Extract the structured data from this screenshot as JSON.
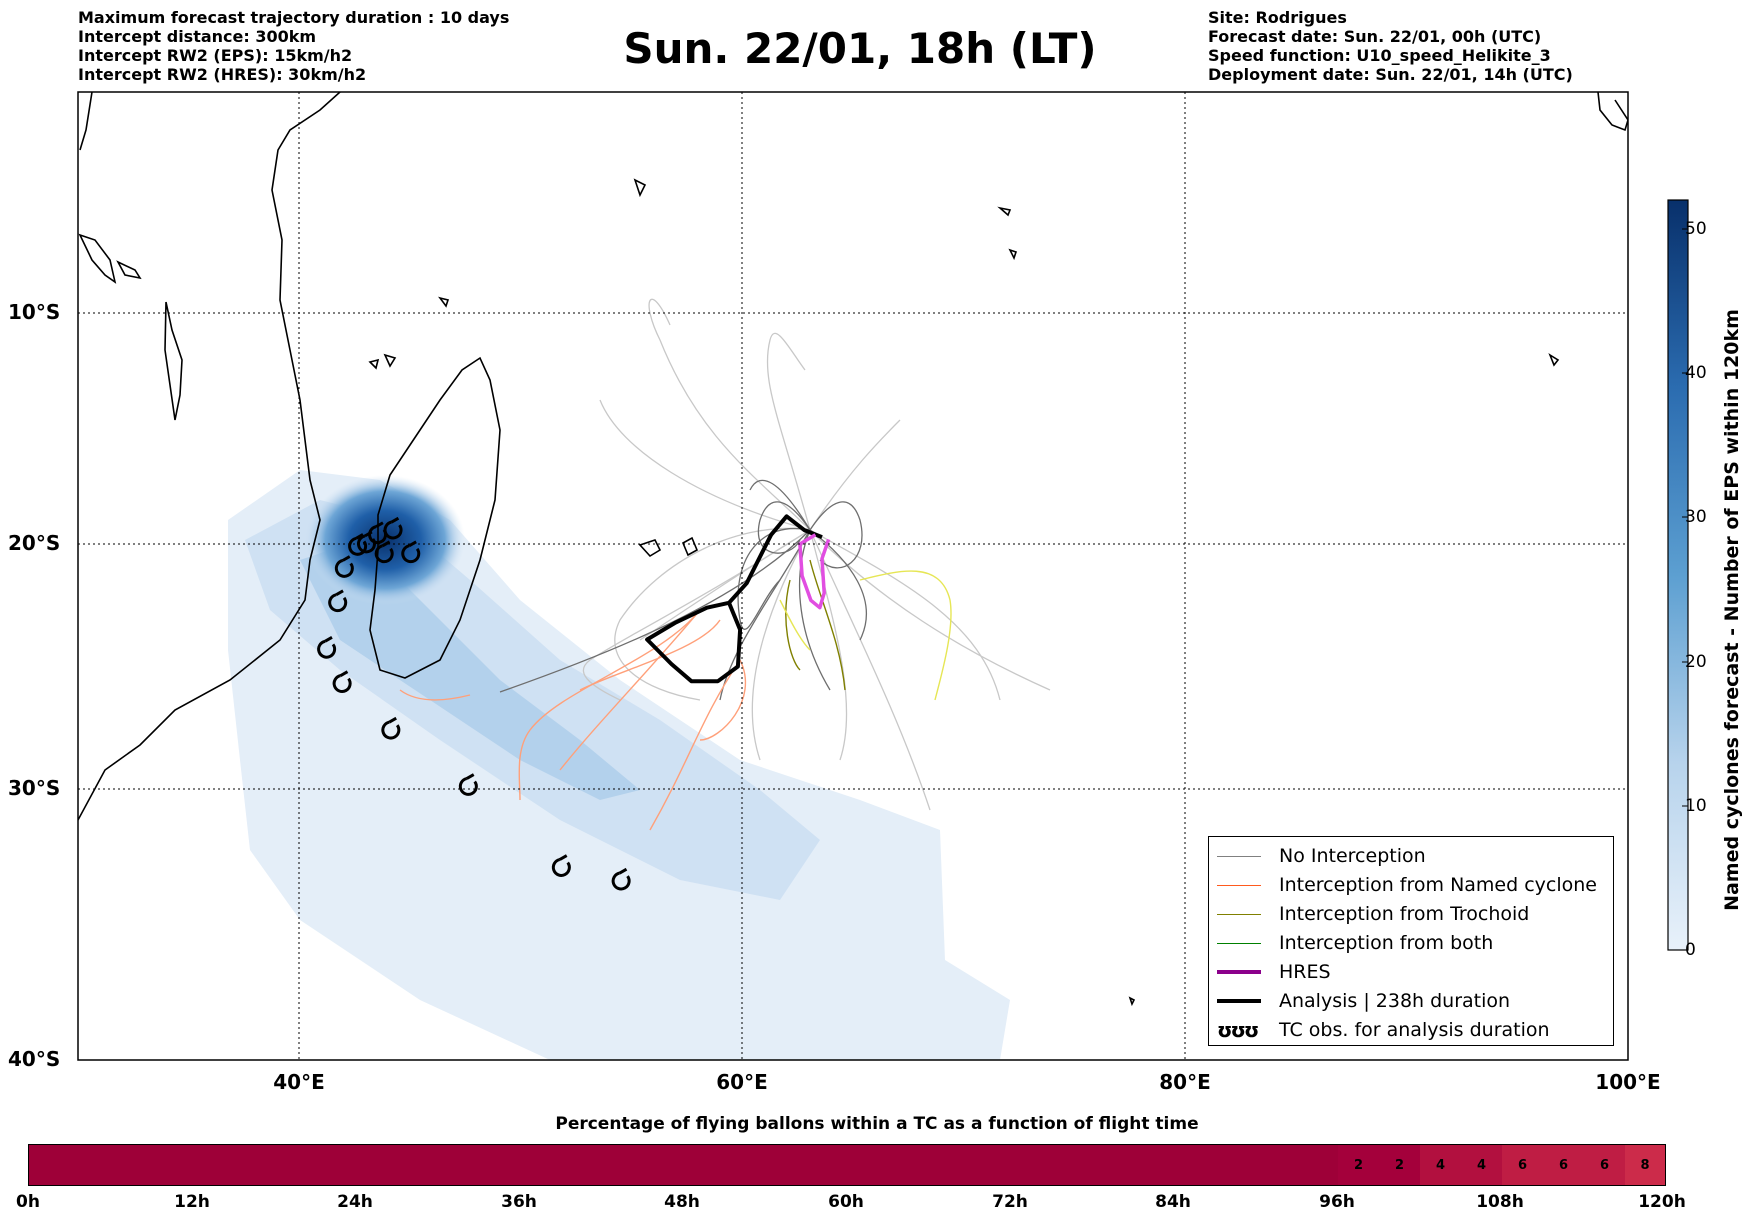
{
  "header_left": [
    "Maximum forecast trajectory duration : 10 days",
    "Intercept distance: 300km",
    "Intercept RW2 (EPS):  15km/h2",
    "Intercept RW2 (HRES): 30km/h2"
  ],
  "title": "Sun. 22/01, 18h (LT)",
  "header_right": [
    "Site: Rodrigues",
    "Forecast date: Sun. 22/01, 00h (UTC)",
    "Speed function: U10_speed_Helikite_3",
    "Deployment date: Sun. 22/01, 14h (UTC)"
  ],
  "map": {
    "lon_range": [
      30,
      100
    ],
    "lat_range": [
      -40,
      0
    ],
    "lat_labels": [
      "10°S",
      "20°S",
      "30°S",
      "40°S"
    ],
    "lon_labels": [
      "40°E",
      "60°E",
      "80°E",
      "100°E"
    ],
    "grid": "dotted"
  },
  "legend": {
    "items": [
      {
        "label": "No Interception",
        "color": "#808080",
        "style": "thin"
      },
      {
        "label": "Interception from Named cyclone",
        "color": "#ff5a1e",
        "style": "thin"
      },
      {
        "label": "Interception from Trochoid",
        "color": "#808000",
        "style": "thin"
      },
      {
        "label": "Interception from both",
        "color": "#008000",
        "style": "thin"
      },
      {
        "label": "HRES",
        "color": "#8b008b",
        "style": "thick"
      },
      {
        "label": "Analysis | 238h duration",
        "color": "#000000",
        "style": "thick"
      },
      {
        "label": "TC obs. for analysis duration",
        "color": "#000000",
        "style": "icon",
        "icon_text": "ʊʊʊ"
      }
    ]
  },
  "colorbar": {
    "title": "Named cyclones forecast - Number of EPS within 120km",
    "ticks": [
      "0",
      "10",
      "20",
      "30",
      "40",
      "50"
    ],
    "range": [
      0,
      52
    ],
    "color_low": "#e3eef9",
    "color_high": "#0a3d7a"
  },
  "timeline": {
    "title": "Percentage of flying ballons within a TC as a function of flight time",
    "tick_labels": [
      "0h",
      "12h",
      "24h",
      "36h",
      "48h",
      "60h",
      "72h",
      "84h",
      "96h",
      "108h",
      "120h"
    ],
    "percentages": [
      "2",
      "2",
      "4",
      "4",
      "6",
      "6",
      "6",
      "8"
    ],
    "base_color": "#9e0038"
  },
  "tc_observations": [
    {
      "lon": 43.0,
      "lat": -20.0
    },
    {
      "lon": 43.5,
      "lat": -19.6
    },
    {
      "lon": 44.2,
      "lat": -19.4
    },
    {
      "lon": 43.8,
      "lat": -20.4
    },
    {
      "lon": 45.0,
      "lat": -20.4
    },
    {
      "lon": 42.6,
      "lat": -20.1
    },
    {
      "lon": 42.0,
      "lat": -21.0
    },
    {
      "lon": 41.7,
      "lat": -22.4
    },
    {
      "lon": 41.2,
      "lat": -24.3
    },
    {
      "lon": 41.9,
      "lat": -25.7
    },
    {
      "lon": 44.1,
      "lat": -27.6
    },
    {
      "lon": 47.6,
      "lat": -29.9
    },
    {
      "lon": 51.8,
      "lat": -32.9
    },
    {
      "lon": 54.5,
      "lat": -33.4
    }
  ],
  "analysis_track": [
    [
      63.6,
      -19.7
    ],
    [
      62.8,
      -19.4
    ],
    [
      62.0,
      -18.8
    ],
    [
      61.3,
      -19.6
    ],
    [
      60.2,
      -21.6
    ],
    [
      59.4,
      -22.4
    ],
    [
      59.9,
      -23.5
    ],
    [
      59.8,
      -25.0
    ],
    [
      58.9,
      -25.6
    ],
    [
      57.7,
      -25.6
    ],
    [
      56.8,
      -24.9
    ],
    [
      55.7,
      -23.9
    ],
    [
      57.0,
      -23.2
    ],
    [
      58.4,
      -22.6
    ],
    [
      59.4,
      -22.4
    ]
  ],
  "hres_track": [
    [
      63.3,
      -19.6
    ],
    [
      62.6,
      -20.0
    ],
    [
      62.7,
      -21.3
    ],
    [
      63.1,
      -22.3
    ],
    [
      63.5,
      -22.6
    ],
    [
      63.7,
      -22.0
    ],
    [
      63.6,
      -20.6
    ],
    [
      63.9,
      -19.8
    ]
  ]
}
